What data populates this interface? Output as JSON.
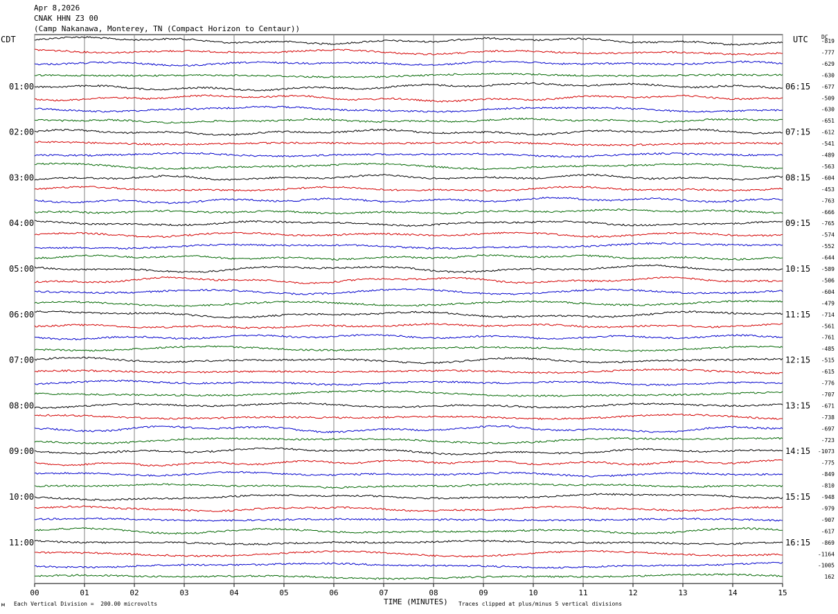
{
  "header": {
    "date": "Apr 8,2026",
    "station": "CNAK HHN Z3 00",
    "location": "(Camp Nakanawa, Monterey, TN (Compact Horizon to Centaur))"
  },
  "chart_data": {
    "type": "line",
    "left_axis_title": "CDT",
    "right_axis_title": "UTC",
    "dc_label": "DC",
    "xlabel": "TIME (MINUTES)",
    "x_ticks": [
      "00",
      "01",
      "02",
      "03",
      "04",
      "05",
      "06",
      "07",
      "08",
      "09",
      "10",
      "11",
      "12",
      "13",
      "14",
      "15"
    ],
    "xlim": [
      0,
      15
    ],
    "left_hour_labels": [
      "01:00",
      "02:00",
      "03:00",
      "04:00",
      "05:00",
      "06:00",
      "07:00",
      "08:00",
      "09:00",
      "10:00",
      "11:00"
    ],
    "right_hour_labels": [
      "06:15",
      "07:15",
      "08:15",
      "09:15",
      "10:15",
      "11:15",
      "12:15",
      "13:15",
      "14:15",
      "15:15",
      "16:15"
    ],
    "trace_colors": [
      "#000000",
      "#d40000",
      "#0000cc",
      "#006600"
    ],
    "trace_count": 48,
    "trace_interval_minutes": 15,
    "dc_offsets": [
      "-819",
      "-777",
      "-629",
      "-630",
      "-677",
      "-509",
      "-630",
      "-651",
      "-612",
      "-541",
      "-489",
      "-563",
      "-604",
      "-453",
      "-763",
      "-666",
      "-765",
      "-574",
      "-552",
      "-644",
      "-589",
      "-506",
      "-604",
      "-479",
      "-714",
      "-561",
      "-761",
      "-485",
      "-515",
      "-615",
      "-776",
      "-707",
      "-671",
      "-738",
      "-697",
      "-723",
      "-1073",
      "-775",
      "-849",
      "-810",
      "-948",
      "-979",
      "-907",
      "-617",
      "-869",
      "-1164",
      "-1005",
      "162"
    ]
  },
  "footer": {
    "scale_note": "Each Vertical Division =  200.00 microvolts",
    "clip_note": "Traces clipped at plus/minus 5 vertical divisions",
    "corner_mark": "м"
  }
}
